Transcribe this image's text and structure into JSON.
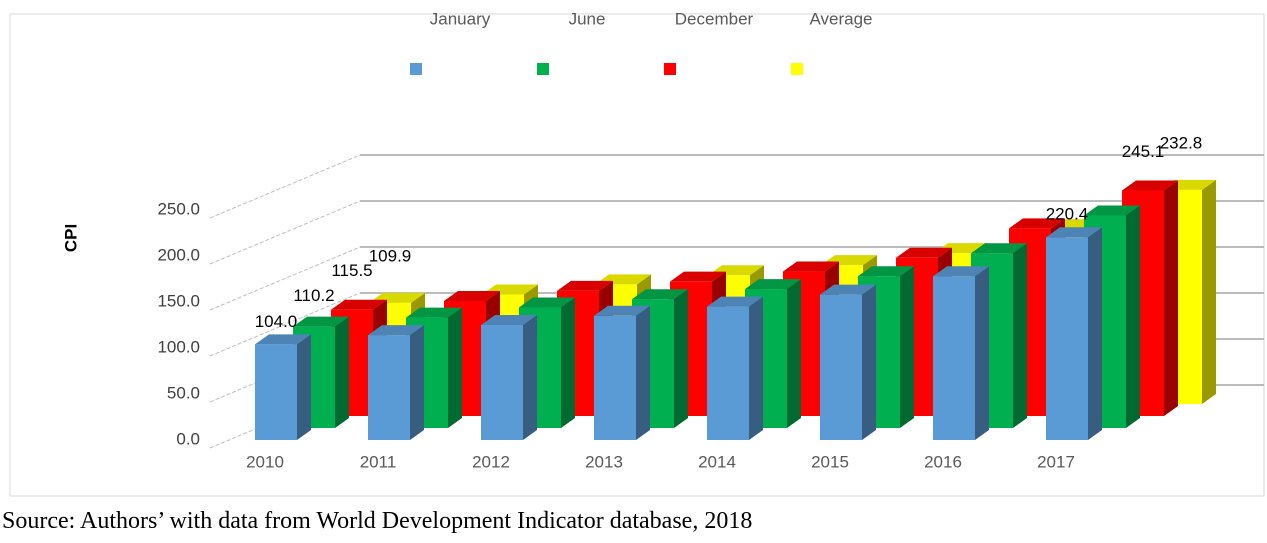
{
  "chart_data": {
    "type": "bar3d",
    "y_label": "CPI",
    "categories": [
      "2010",
      "2011",
      "2012",
      "2013",
      "2014",
      "2015",
      "2016",
      "2017"
    ],
    "series": [
      {
        "name": "January",
        "color": "#5b9bd5",
        "values": [
          104.0,
          114,
          125,
          135,
          145,
          158,
          178,
          220.4
        ],
        "value_labels": [
          "104.0",
          null,
          null,
          null,
          null,
          null,
          null,
          "220.4"
        ]
      },
      {
        "name": "June",
        "color": "#00b050",
        "values": [
          110.2,
          120,
          131,
          140,
          151,
          165,
          190,
          231
        ],
        "value_labels": [
          "110.2",
          null,
          null,
          null,
          null,
          null,
          null,
          null
        ]
      },
      {
        "name": "December",
        "color": "#ff0000",
        "values": [
          115.5,
          125,
          136,
          146,
          157,
          172,
          204,
          245.1
        ],
        "value_labels": [
          "115.5",
          null,
          null,
          null,
          null,
          null,
          null,
          "245.1"
        ]
      },
      {
        "name": "Average",
        "color": "#ffff00",
        "values": [
          109.9,
          119,
          130,
          140,
          151,
          164,
          190,
          232.8
        ],
        "value_labels": [
          "109.9",
          null,
          null,
          null,
          null,
          null,
          null,
          "232.8"
        ]
      }
    ],
    "ylim": [
      0,
      250
    ],
    "yticks": [
      {
        "value": 0,
        "label": "0.0"
      },
      {
        "value": 50,
        "label": "50.0"
      },
      {
        "value": 100,
        "label": "100.0"
      },
      {
        "value": 150,
        "label": "150.0"
      },
      {
        "value": 200,
        "label": "200.0"
      },
      {
        "value": 250,
        "label": "250.0"
      }
    ],
    "grid": true,
    "legend": "top",
    "source": "Source: Authors’ with data from World Development Indicator database, 2018"
  }
}
